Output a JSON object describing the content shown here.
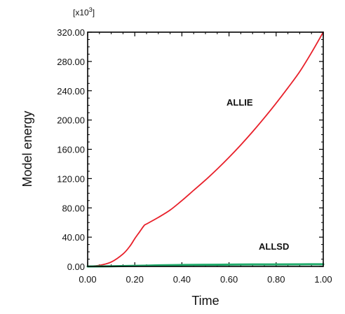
{
  "chart_data": {
    "type": "line",
    "xlabel": "Time",
    "ylabel": "Model energy",
    "y_multiplier": "[x10",
    "y_multiplier_exp": "3",
    "y_multiplier_close": "]",
    "xlim": [
      0,
      1
    ],
    "ylim": [
      0,
      320
    ],
    "x_ticks": [
      "0.00",
      "0.20",
      "0.40",
      "0.60",
      "0.80",
      "1.00"
    ],
    "y_ticks": [
      "0.00",
      "40.00",
      "80.00",
      "120.00",
      "160.00",
      "200.00",
      "240.00",
      "280.00",
      "320.00"
    ],
    "grid": false,
    "series": [
      {
        "name": "ALLIE",
        "color": "#e8202a",
        "x": [
          0,
          0.05,
          0.1,
          0.15,
          0.18,
          0.2,
          0.22,
          0.24,
          0.25,
          0.3,
          0.35,
          0.4,
          0.45,
          0.5,
          0.55,
          0.6,
          0.65,
          0.7,
          0.75,
          0.8,
          0.85,
          0.9,
          0.95,
          1.0
        ],
        "y": [
          0,
          1.5,
          6,
          17,
          28,
          38,
          47,
          56,
          58,
          67,
          77,
          90,
          104,
          118,
          133,
          149,
          166,
          184,
          203,
          223,
          244,
          266,
          292,
          320
        ]
      },
      {
        "name": "ALLSD",
        "color": "#1faa6a",
        "x": [
          0,
          0.1,
          0.2,
          0.3,
          0.4,
          0.5,
          0.6,
          0.7,
          0.8,
          0.9,
          1.0
        ],
        "y": [
          0,
          0.2,
          0.8,
          1.5,
          2.0,
          2.3,
          2.5,
          2.7,
          2.8,
          2.9,
          3.0
        ]
      }
    ]
  }
}
